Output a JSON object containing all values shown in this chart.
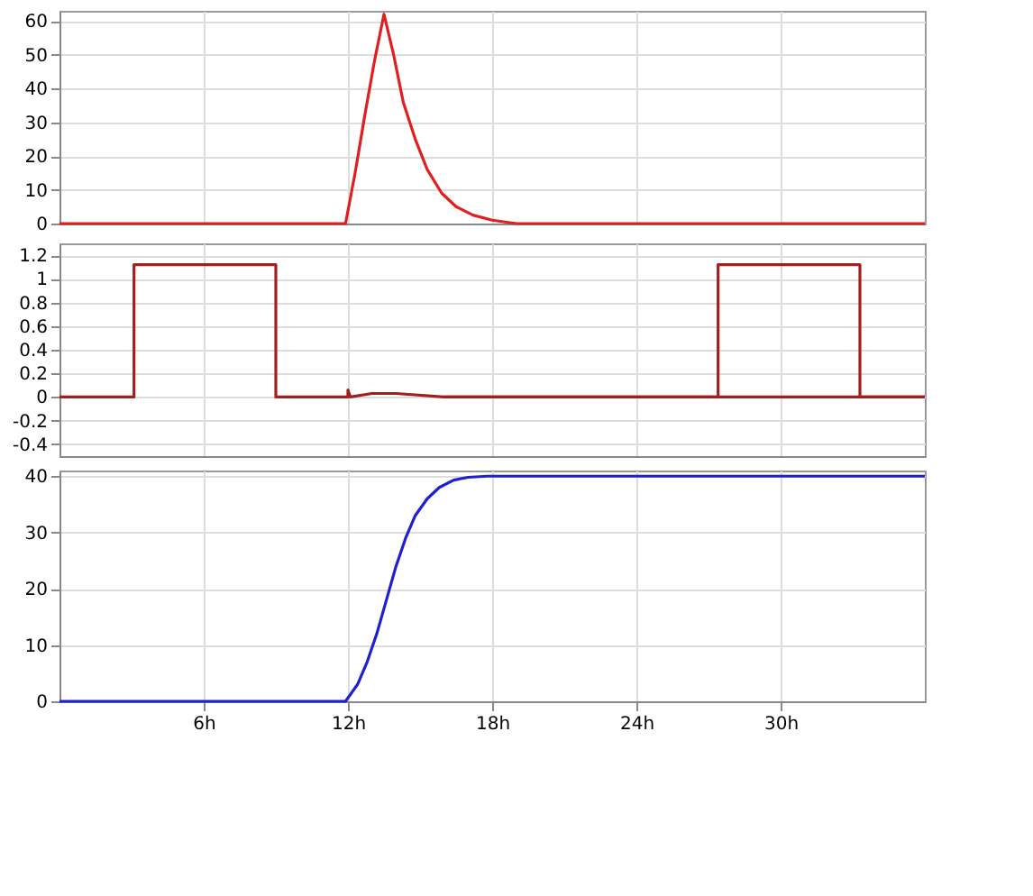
{
  "chart_data": [
    {
      "type": "line",
      "xlim": [
        0,
        36
      ],
      "xticks": [
        6,
        12,
        18,
        24,
        30
      ],
      "ylim": [
        0,
        63
      ],
      "yticks": [
        0,
        10,
        20,
        30,
        40,
        50,
        60
      ],
      "grid": true,
      "tick_labels": "y",
      "series": [
        {
          "color": "#e02020",
          "x": [
            0,
            11.9,
            12.3,
            12.7,
            13.1,
            13.5,
            13.9,
            14.3,
            14.8,
            15.3,
            15.9,
            16.5,
            17.2,
            18,
            19,
            36
          ],
          "values": [
            0,
            0,
            15,
            32,
            48,
            62,
            50,
            36,
            25,
            16,
            9,
            5,
            2.5,
            1,
            0,
            0
          ]
        }
      ]
    },
    {
      "type": "line",
      "xlim": [
        0,
        36
      ],
      "xticks": [
        6,
        12,
        18,
        24,
        30
      ],
      "ylim": [
        -0.5,
        1.3
      ],
      "yticks": [
        -0.4,
        -0.2,
        0,
        0.2,
        0.4,
        0.6,
        0.8,
        1,
        1.2
      ],
      "grid": true,
      "tick_labels": "y",
      "series": [
        {
          "color": "#a02020",
          "x": [
            0,
            3.1,
            3.1,
            9,
            9,
            12,
            12,
            12.1,
            13,
            14,
            16,
            36
          ],
          "values": [
            0,
            0,
            1.12,
            1.12,
            0,
            0,
            0.06,
            0,
            0.03,
            0.03,
            0,
            0
          ]
        },
        {
          "color": "#a02020",
          "x": [
            16,
            27.4,
            27.4,
            33.3,
            33.3,
            36
          ],
          "values": [
            0,
            0,
            1.12,
            1.12,
            0,
            0
          ]
        }
      ]
    },
    {
      "type": "line",
      "xlim": [
        0,
        36
      ],
      "xticks": [
        {
          "value": 6,
          "label": "6h"
        },
        {
          "value": 12,
          "label": "12h"
        },
        {
          "value": 18,
          "label": "18h"
        },
        {
          "value": 24,
          "label": "24h"
        },
        {
          "value": 30,
          "label": "30h"
        }
      ],
      "ylim": [
        0,
        41
      ],
      "yticks": [
        0,
        10,
        20,
        30,
        40
      ],
      "grid": true,
      "series": [
        {
          "color": "#2020d0",
          "x": [
            0,
            11.9,
            12.4,
            12.8,
            13.2,
            13.6,
            14,
            14.4,
            14.8,
            15.3,
            15.8,
            16.4,
            17,
            17.8,
            18.5,
            36
          ],
          "values": [
            0,
            0,
            3,
            7,
            12,
            18,
            24,
            29,
            33,
            36,
            38,
            39.3,
            39.8,
            40,
            40,
            40
          ]
        }
      ]
    }
  ]
}
